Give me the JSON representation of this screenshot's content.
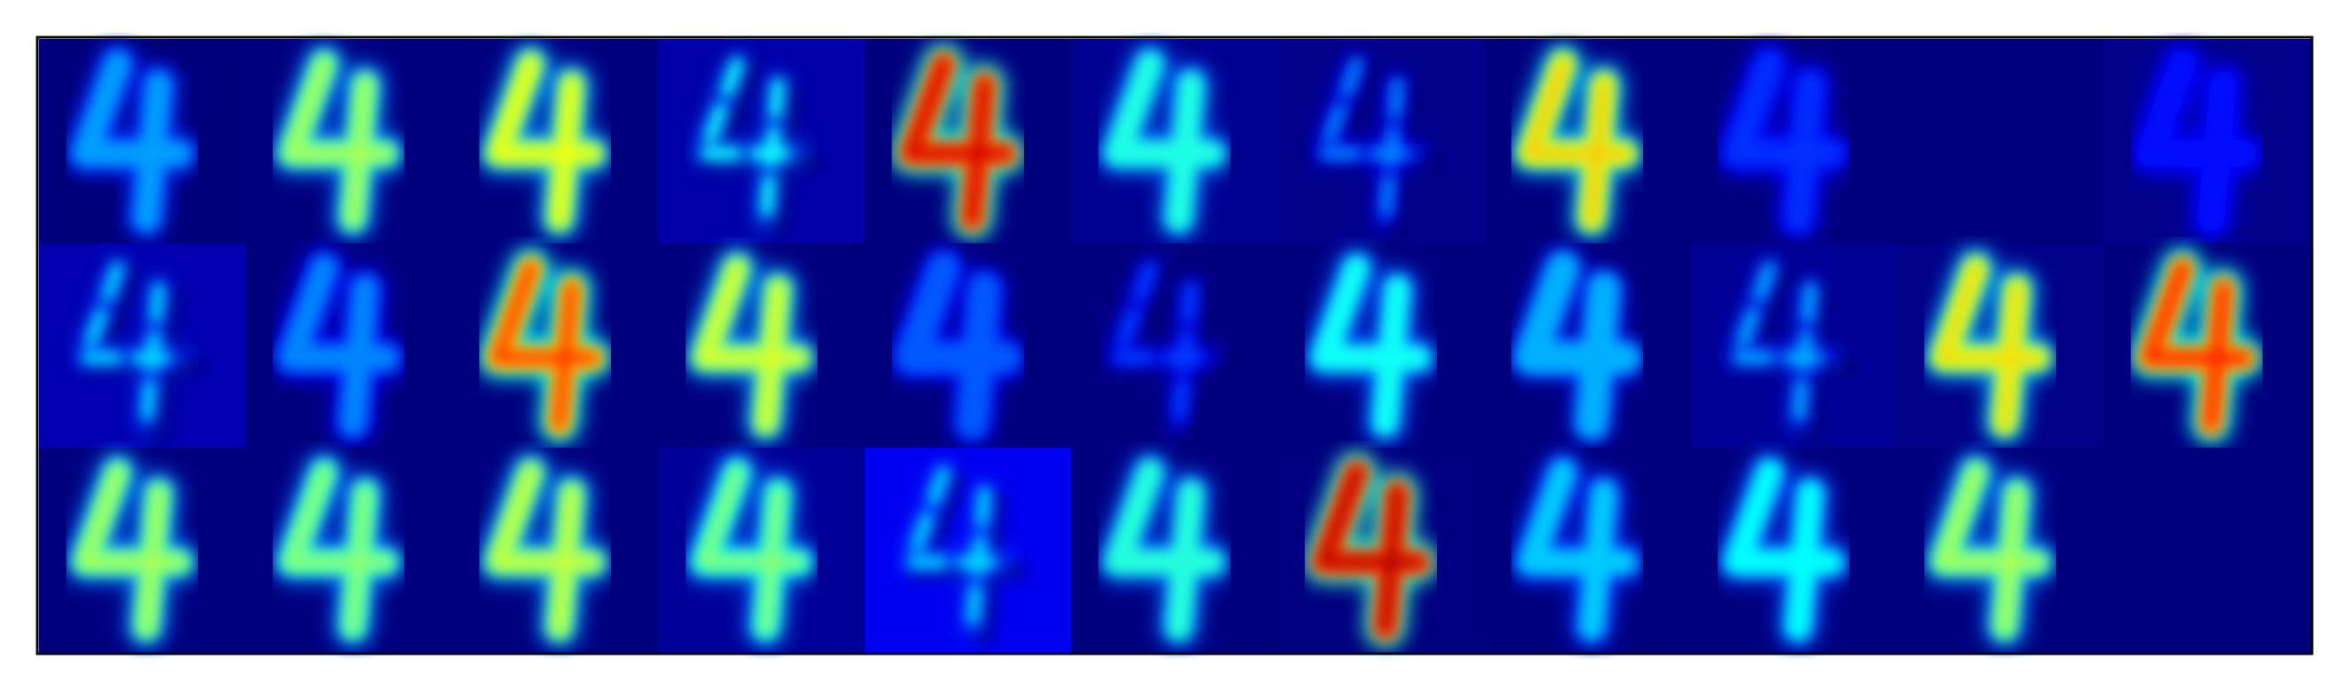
{
  "figure": {
    "description_colormap": "jet",
    "rows": 3,
    "cols": 11,
    "colors": {
      "frame": "#000000",
      "background": "#ffffff",
      "empty_tile": "#00007f"
    },
    "tiles": [
      {
        "kind": "outline",
        "glyph": "4",
        "bg": "#00007a",
        "intensity": 0.35
      },
      {
        "kind": "solid",
        "glyph": "4",
        "bg": "#00007f",
        "intensity": 0.55
      },
      {
        "kind": "solid",
        "glyph": "4",
        "bg": "#00007f",
        "intensity": 0.62
      },
      {
        "kind": "strokes",
        "glyph": "4",
        "bg": "#0000a8",
        "intensity": 0.45
      },
      {
        "kind": "solid",
        "glyph": "4",
        "bg": "#00007f",
        "intensity": 0.92
      },
      {
        "kind": "outline",
        "glyph": "4",
        "bg": "#000090",
        "intensity": 0.5
      },
      {
        "kind": "strokes",
        "glyph": "4",
        "bg": "#00008a",
        "intensity": 0.3
      },
      {
        "kind": "solid",
        "glyph": "4",
        "bg": "#00007f",
        "intensity": 0.68
      },
      {
        "kind": "solid",
        "glyph": "4",
        "bg": "#00007f",
        "intensity": 0.2
      },
      {
        "kind": "empty",
        "glyph": "",
        "bg": "#00007f",
        "intensity": 0.0
      },
      {
        "kind": "solid",
        "glyph": "4",
        "bg": "#00008a",
        "intensity": 0.16
      },
      {
        "kind": "strokes",
        "glyph": "4",
        "bg": "#0000b0",
        "intensity": 0.4
      },
      {
        "kind": "solid",
        "glyph": "4",
        "bg": "#00007f",
        "intensity": 0.3
      },
      {
        "kind": "solid",
        "glyph": "4",
        "bg": "#00007f",
        "intensity": 0.82
      },
      {
        "kind": "solid",
        "glyph": "4",
        "bg": "#00007f",
        "intensity": 0.6
      },
      {
        "kind": "blob",
        "glyph": "4",
        "bg": "#00007f",
        "intensity": 0.25
      },
      {
        "kind": "strokes",
        "glyph": "4",
        "bg": "#00007f",
        "intensity": 0.22
      },
      {
        "kind": "solid",
        "glyph": "4",
        "bg": "#00007f",
        "intensity": 0.45
      },
      {
        "kind": "blob",
        "glyph": "4",
        "bg": "#00007f",
        "intensity": 0.35
      },
      {
        "kind": "strokes",
        "glyph": "4",
        "bg": "#000094",
        "intensity": 0.35
      },
      {
        "kind": "solid",
        "glyph": "4",
        "bg": "#000088",
        "intensity": 0.66
      },
      {
        "kind": "solid",
        "glyph": "4",
        "bg": "#00007f",
        "intensity": 0.85
      },
      {
        "kind": "solid",
        "glyph": "4",
        "bg": "#00007f",
        "intensity": 0.55
      },
      {
        "kind": "solid",
        "glyph": "4",
        "bg": "#00007f",
        "intensity": 0.52
      },
      {
        "kind": "solid",
        "glyph": "4",
        "bg": "#00007f",
        "intensity": 0.58
      },
      {
        "kind": "outline",
        "glyph": "4",
        "bg": "#000098",
        "intensity": 0.52
      },
      {
        "kind": "strokes",
        "glyph": "4",
        "bg": "#0000f0",
        "intensity": 0.4
      },
      {
        "kind": "solid",
        "glyph": "4",
        "bg": "#00007f",
        "intensity": 0.48
      },
      {
        "kind": "solid",
        "glyph": "4",
        "bg": "#000080",
        "intensity": 0.95
      },
      {
        "kind": "solid",
        "glyph": "4",
        "bg": "#00007f",
        "intensity": 0.38
      },
      {
        "kind": "solid",
        "glyph": "4",
        "bg": "#00007f",
        "intensity": 0.44
      },
      {
        "kind": "solid",
        "glyph": "4",
        "bg": "#00007f",
        "intensity": 0.55
      },
      {
        "kind": "empty",
        "glyph": "",
        "bg": "#00007f",
        "intensity": 0.0
      }
    ]
  }
}
